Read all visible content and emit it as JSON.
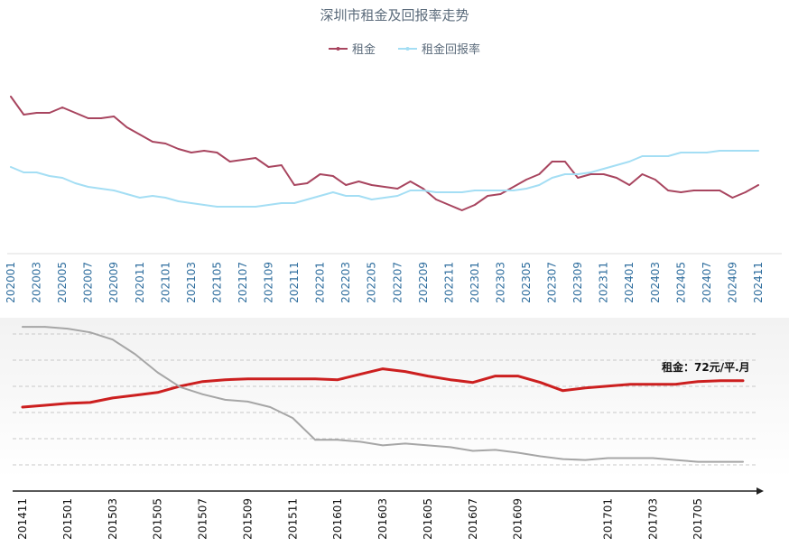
{
  "chart_data": [
    {
      "type": "line",
      "title": "深圳市租金及回报率走势",
      "legend_position": "top-center",
      "grid": false,
      "x": [
        "202001",
        "202002",
        "202003",
        "202004",
        "202005",
        "202006",
        "202007",
        "202008",
        "202009",
        "202010",
        "202011",
        "202012",
        "202101",
        "202102",
        "202103",
        "202104",
        "202105",
        "202106",
        "202107",
        "202108",
        "202109",
        "202110",
        "202111",
        "202112",
        "202201",
        "202202",
        "202203",
        "202204",
        "202205",
        "202206",
        "202207",
        "202208",
        "202209",
        "202210",
        "202211",
        "202212",
        "202301",
        "202302",
        "202303",
        "202304",
        "202305",
        "202306",
        "202307",
        "202308",
        "202309",
        "202310",
        "202311",
        "202312",
        "202401",
        "202402",
        "202403",
        "202404",
        "202405",
        "202406",
        "202407",
        "202408",
        "202409",
        "202410",
        "202411"
      ],
      "tick_labels": [
        "202001",
        "202003",
        "202005",
        "202007",
        "202009",
        "202011",
        "202101",
        "202103",
        "202105",
        "202107",
        "202109",
        "202111",
        "202201",
        "202203",
        "202205",
        "202207",
        "202209",
        "202211",
        "202301",
        "202303",
        "202305",
        "202307",
        "202309",
        "202311",
        "202401",
        "202403",
        "202405",
        "202407",
        "202409",
        "202411"
      ],
      "ylim": [
        0,
        100
      ],
      "series": [
        {
          "name": "租金",
          "color": "#a8455f",
          "values": [
            92,
            82,
            83,
            83,
            86,
            83,
            80,
            80,
            81,
            75,
            71,
            67,
            66,
            63,
            61,
            62,
            61,
            56,
            57,
            58,
            53,
            54,
            43,
            44,
            49,
            48,
            43,
            45,
            43,
            42,
            41,
            45,
            41,
            35,
            32,
            29,
            32,
            37,
            38,
            42,
            46,
            49,
            56,
            56,
            47,
            49,
            49,
            47,
            43,
            49,
            46,
            40,
            39,
            40,
            40,
            40,
            36,
            39,
            43
          ]
        },
        {
          "name": "租金回报率",
          "color": "#a4def4",
          "values": [
            53,
            50,
            50,
            48,
            47,
            44,
            42,
            41,
            40,
            38,
            36,
            37,
            36,
            34,
            33,
            32,
            31,
            31,
            31,
            31,
            32,
            33,
            33,
            35,
            37,
            39,
            37,
            37,
            35,
            36,
            37,
            40,
            40,
            39,
            39,
            39,
            40,
            40,
            40,
            40,
            41,
            43,
            47,
            49,
            49,
            50,
            52,
            54,
            56,
            59,
            59,
            59,
            61,
            61,
            61,
            62,
            62,
            62,
            62
          ]
        }
      ]
    },
    {
      "type": "line",
      "title": "",
      "grid": true,
      "x": [
        "201411",
        "201412",
        "201501",
        "201502",
        "201503",
        "201504",
        "201505",
        "201506",
        "201507",
        "201508",
        "201509",
        "201510",
        "201511",
        "201512",
        "201601",
        "201602",
        "201603",
        "201604",
        "201605",
        "201606",
        "201607",
        "201608",
        "201609",
        "201610",
        "201611",
        "201612",
        "201701",
        "201702",
        "201703",
        "201704",
        "201705",
        "201706",
        "201707"
      ],
      "tick_labels": [
        "201411",
        "201501",
        "201503",
        "201505",
        "201507",
        "201509",
        "201511",
        "201601",
        "201603",
        "201605",
        "201607",
        "201609",
        "201701",
        "201703",
        "201705"
      ],
      "ylim": [
        0,
        100
      ],
      "annotation": "租金：72元/平.月",
      "series": [
        {
          "color": "#cc1f1f",
          "values": [
            51,
            52,
            53,
            53.5,
            56,
            57.5,
            59,
            62.5,
            65,
            66,
            66.5,
            66.5,
            66.5,
            66.5,
            66,
            69,
            72,
            70.5,
            68,
            66,
            64.5,
            68,
            68,
            64.5,
            60,
            61.5,
            62.5,
            63.5,
            63.5,
            63.5,
            65,
            65.5,
            65.5
          ]
        },
        {
          "color": "#a6a6a6",
          "values": [
            95,
            95,
            94,
            92,
            88,
            80,
            70,
            62,
            58,
            55,
            54,
            51,
            45,
            33,
            33,
            32,
            30,
            31,
            30,
            29,
            27,
            27.5,
            26,
            24,
            22.5,
            22,
            23,
            23,
            23,
            22,
            21,
            21,
            21
          ]
        }
      ]
    }
  ]
}
